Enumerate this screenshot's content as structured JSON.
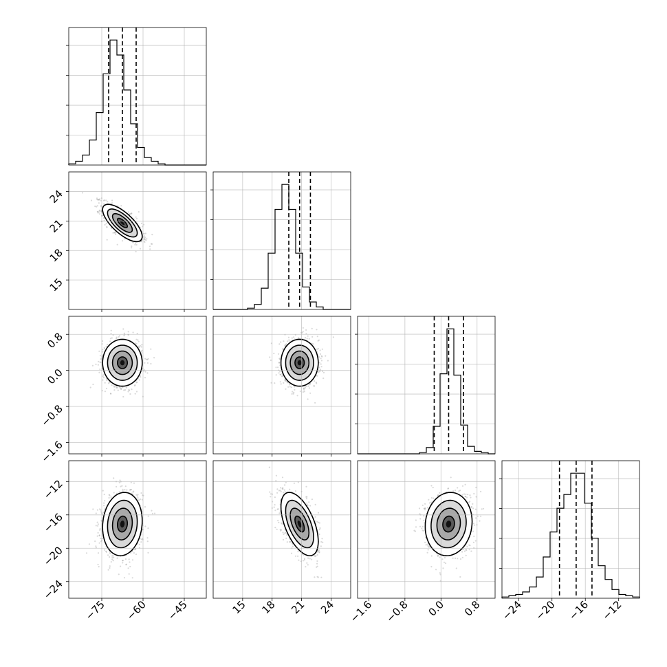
{
  "chart_data": {
    "type": "corner",
    "parameters": [
      {
        "id": "p0",
        "range": [
          -87,
          -37
        ],
        "ticks": [
          -75,
          -60,
          -45
        ],
        "tick_labels": [
          "−75",
          "−60",
          "−45"
        ],
        "ticks_y": null,
        "tick_labels_y": null
      },
      {
        "id": "p1",
        "range": [
          12,
          26
        ],
        "ticks": [
          15,
          18,
          21,
          24
        ],
        "tick_labels": [
          "15",
          "18",
          "21",
          "24"
        ],
        "ticks_y": [
          15,
          18,
          21,
          24
        ],
        "tick_labels_y": [
          "15",
          "18",
          "21",
          "24"
        ]
      },
      {
        "id": "p2",
        "range": [
          -1.85,
          1.2
        ],
        "ticks": [
          -1.6,
          -0.8,
          0.0,
          0.8
        ],
        "tick_labels": [
          "−1.6",
          "−0.8",
          "0.0",
          "0.8"
        ],
        "ticks_y": [
          -1.6,
          -0.8,
          0.0,
          0.8
        ],
        "tick_labels_y": [
          "−1.6",
          "−0.8",
          "0.0",
          "0.8"
        ]
      },
      {
        "id": "p3",
        "range": [
          -26,
          -9.5
        ],
        "ticks": [
          -24,
          -20,
          -16,
          -12
        ],
        "tick_labels": [
          "−24",
          "−20",
          "−16",
          "−12"
        ],
        "ticks_y": [
          -24,
          -20,
          -16,
          -12
        ],
        "tick_labels_y": [
          "−24",
          "−20",
          "−16",
          "−12"
        ]
      }
    ],
    "histograms": [
      {
        "param": 0,
        "counts": [
          1,
          3,
          8,
          20,
          42,
          73,
          100,
          88,
          60,
          33,
          14,
          6,
          3,
          1,
          0,
          0,
          0,
          0,
          0,
          0
        ],
        "quantiles": [
          -72.5,
          -67.5,
          -62.5
        ]
      },
      {
        "param": 1,
        "counts": [
          0,
          0,
          0,
          0,
          0,
          1,
          4,
          17,
          45,
          80,
          100,
          80,
          45,
          18,
          6,
          2,
          0,
          0,
          0,
          0
        ],
        "quantiles": [
          19.7,
          20.8,
          21.9
        ]
      },
      {
        "param": 2,
        "counts": [
          0,
          0,
          0,
          0,
          0,
          0,
          0,
          0,
          0,
          1,
          5,
          22,
          64,
          100,
          63,
          23,
          6,
          2,
          1,
          0
        ],
        "quantiles": [
          -0.15,
          0.17,
          0.5
        ]
      },
      {
        "param": 3,
        "counts": [
          1,
          2,
          3,
          5,
          9,
          17,
          33,
          53,
          72,
          83,
          100,
          100,
          76,
          48,
          26,
          15,
          7,
          3,
          2,
          1
        ],
        "quantiles": [
          -19.1,
          -17.1,
          -15.2
        ]
      }
    ],
    "pairs": [
      {
        "x": 0,
        "y": 1,
        "mean": [
          -67.5,
          20.8
        ],
        "std": [
          3.6,
          0.95
        ],
        "corr": -0.72
      },
      {
        "x": 0,
        "y": 2,
        "mean": [
          -67.5,
          0.17
        ],
        "std": [
          3.6,
          0.26
        ],
        "corr": 0.0
      },
      {
        "x": 1,
        "y": 2,
        "mean": [
          20.8,
          0.17
        ],
        "std": [
          0.95,
          0.26
        ],
        "corr": 0.0
      },
      {
        "x": 0,
        "y": 3,
        "mean": [
          -67.5,
          -17.1
        ],
        "std": [
          3.6,
          1.9
        ],
        "corr": 0.1
      },
      {
        "x": 1,
        "y": 3,
        "mean": [
          20.8,
          -17.1
        ],
        "std": [
          0.95,
          1.9
        ],
        "corr": -0.55
      },
      {
        "x": 2,
        "y": 3,
        "mean": [
          0.17,
          -17.1
        ],
        "std": [
          0.26,
          1.9
        ],
        "corr": 0.08
      }
    ],
    "contour_levels_sigma": [
      0.5,
      1.0,
      1.5,
      2.0
    ],
    "quantile_line_style": "dashed",
    "grid": true,
    "xlabel": "",
    "ylabel": "",
    "title": ""
  }
}
